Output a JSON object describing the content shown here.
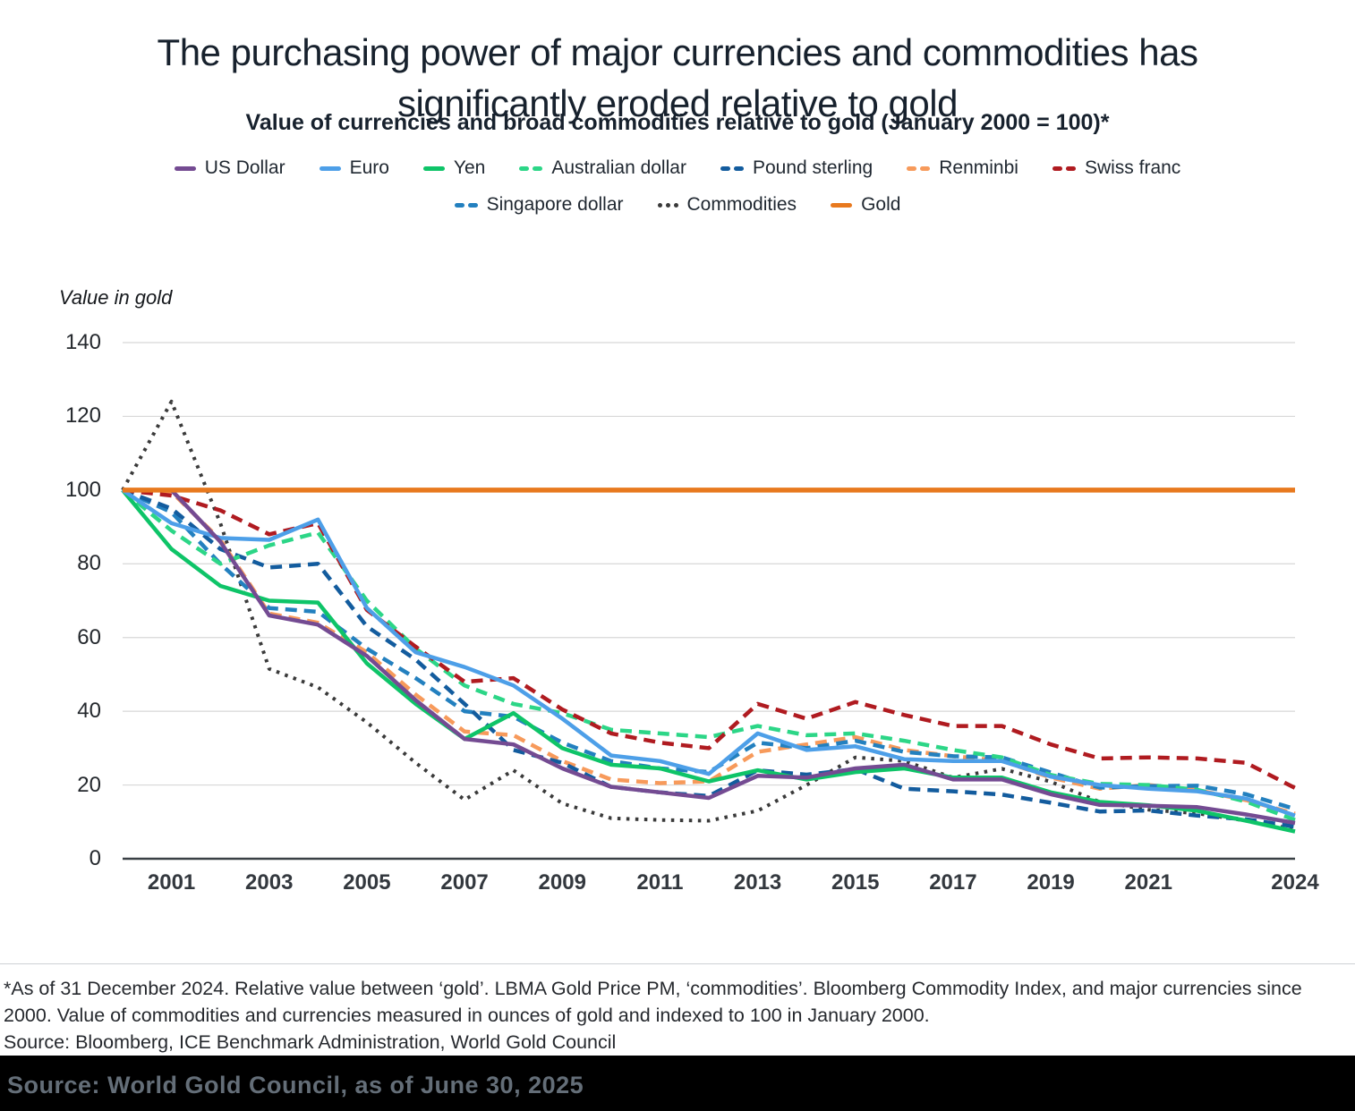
{
  "title_lines": [
    "The purchasing power of major currencies and commodities has",
    "significantly eroded relative to gold"
  ],
  "subtitle": "Value of currencies and broad commodities relative to gold (January 2000 = 100)*",
  "y_axis_label": "Value in gold",
  "footnote": {
    "note": "*As of 31 December 2024. Relative value between ‘gold’. LBMA Gold Price PM, ‘commodities’. Bloomberg Commodity Index, and major currencies since 2000. Value of commodities and currencies measured in ounces of gold and indexed to 100 in January 2000.",
    "source": "Source: Bloomberg, ICE Benchmark Administration, World Gold Council"
  },
  "bottom_bar": {
    "text": "Source: World Gold Council, as of June 30, 2025",
    "background": "#000000",
    "text_color": "#76828e"
  },
  "colors": {
    "grid": "#d7d7d7",
    "axis": "#3a4045",
    "title_text": "#17212d",
    "gold_accent": "#e8791e"
  },
  "chart_data": {
    "type": "line",
    "title": "Value of currencies and broad commodities relative to gold (January 2000 = 100)*",
    "xlabel": "",
    "ylabel": "Value in gold",
    "ylim": [
      0,
      140
    ],
    "y_ticks": [
      0,
      20,
      40,
      60,
      80,
      100,
      120,
      140
    ],
    "grid": true,
    "legend_position": "top",
    "legend_rows": [
      7,
      3
    ],
    "x": [
      2000,
      2001,
      2002,
      2003,
      2004,
      2005,
      2006,
      2007,
      2008,
      2009,
      2010,
      2011,
      2012,
      2013,
      2014,
      2015,
      2016,
      2017,
      2018,
      2019,
      2020,
      2021,
      2022,
      2023,
      2024
    ],
    "x_tick_indices": [
      1,
      3,
      5,
      7,
      9,
      11,
      13,
      15,
      17,
      19,
      21,
      24
    ],
    "draw_order": [
      8,
      5,
      7,
      4,
      3,
      6,
      2,
      1,
      0,
      9
    ],
    "series": [
      {
        "name": "US Dollar",
        "color": "#744b92",
        "style": "solid",
        "values": [
          100,
          100,
          86,
          66,
          63.5,
          55,
          43,
          32.5,
          31,
          24.5,
          19.5,
          18,
          16.5,
          22.5,
          22,
          24.5,
          25.5,
          21.5,
          21.5,
          17.5,
          14.6,
          14.4,
          14,
          12,
          9.7
        ]
      },
      {
        "name": "Euro",
        "color": "#4d9fe8",
        "style": "solid",
        "values": [
          100,
          91,
          87,
          86.5,
          92,
          68,
          56,
          52,
          47,
          38,
          28,
          26.5,
          23,
          34,
          29.5,
          30.5,
          27,
          26.5,
          26.5,
          22.3,
          20,
          19,
          18.3,
          16.3,
          11.7
        ]
      },
      {
        "name": "Yen",
        "color": "#0ec468",
        "style": "solid",
        "values": [
          100,
          84,
          74,
          70,
          69.5,
          53,
          42,
          32.5,
          39.5,
          30,
          25.5,
          24.5,
          21,
          24,
          21.5,
          23.5,
          24.5,
          22,
          22,
          18,
          15.4,
          14.5,
          13,
          10.3,
          7.4
        ]
      },
      {
        "name": "Australian dollar",
        "color": "#2cd687",
        "style": "dashed",
        "values": [
          100,
          89,
          80,
          85,
          88.5,
          70,
          57,
          47,
          42,
          39.5,
          35,
          34,
          33,
          36,
          33.5,
          34,
          32,
          29.5,
          27.5,
          22.7,
          20.3,
          20,
          18.7,
          15.5,
          10.5
        ]
      },
      {
        "name": "Pound sterling",
        "color": "#135c9e",
        "style": "dashed",
        "values": [
          100,
          95,
          84,
          79,
          80,
          63,
          54,
          42,
          29.5,
          26,
          19.5,
          18,
          17,
          24,
          22.8,
          24.3,
          19,
          18.3,
          17.4,
          15.2,
          12.8,
          13.1,
          11.7,
          10.7,
          8.7
        ]
      },
      {
        "name": "Renminbi",
        "color": "#f79a5b",
        "style": "dashed",
        "values": [
          100,
          99.5,
          86.5,
          66.5,
          64,
          56,
          44.5,
          34.5,
          33.5,
          26.5,
          21.5,
          20.5,
          21,
          29,
          31,
          33,
          29.5,
          27.8,
          26.6,
          22,
          19,
          20,
          18.6,
          15.9,
          12.2
        ]
      },
      {
        "name": "Swiss franc",
        "color": "#b01b20",
        "style": "dashed",
        "values": [
          100,
          98.5,
          94.5,
          88,
          91,
          67.5,
          57.5,
          48,
          49,
          40.5,
          34,
          31.5,
          30,
          42,
          38,
          42.5,
          39,
          36,
          36,
          31,
          27.2,
          27.5,
          27.2,
          26,
          19.2
        ]
      },
      {
        "name": "Singapore dollar",
        "color": "#2380bf",
        "style": "dashed",
        "values": [
          100,
          94,
          80,
          68,
          67,
          57,
          49,
          40,
          38.5,
          31.5,
          26.5,
          24.5,
          23.5,
          31.5,
          30,
          32,
          29,
          27.8,
          27.5,
          23.4,
          19.3,
          19.7,
          19.8,
          17.5,
          13.5
        ]
      },
      {
        "name": "Commodities",
        "color": "#3a3a3a",
        "style": "dotted",
        "values": [
          100,
          124,
          91,
          51.5,
          46.5,
          37,
          26,
          16,
          24,
          15,
          11,
          10.5,
          10.3,
          13,
          20,
          27.5,
          26.5,
          22,
          24.4,
          20.9,
          15.4,
          13.3,
          12.3,
          10.3,
          8
        ]
      },
      {
        "name": "Gold",
        "color": "#e8791e",
        "style": "solid",
        "values": [
          100,
          100,
          100,
          100,
          100,
          100,
          100,
          100,
          100,
          100,
          100,
          100,
          100,
          100,
          100,
          100,
          100,
          100,
          100,
          100,
          100,
          100,
          100,
          100,
          100
        ]
      }
    ]
  }
}
